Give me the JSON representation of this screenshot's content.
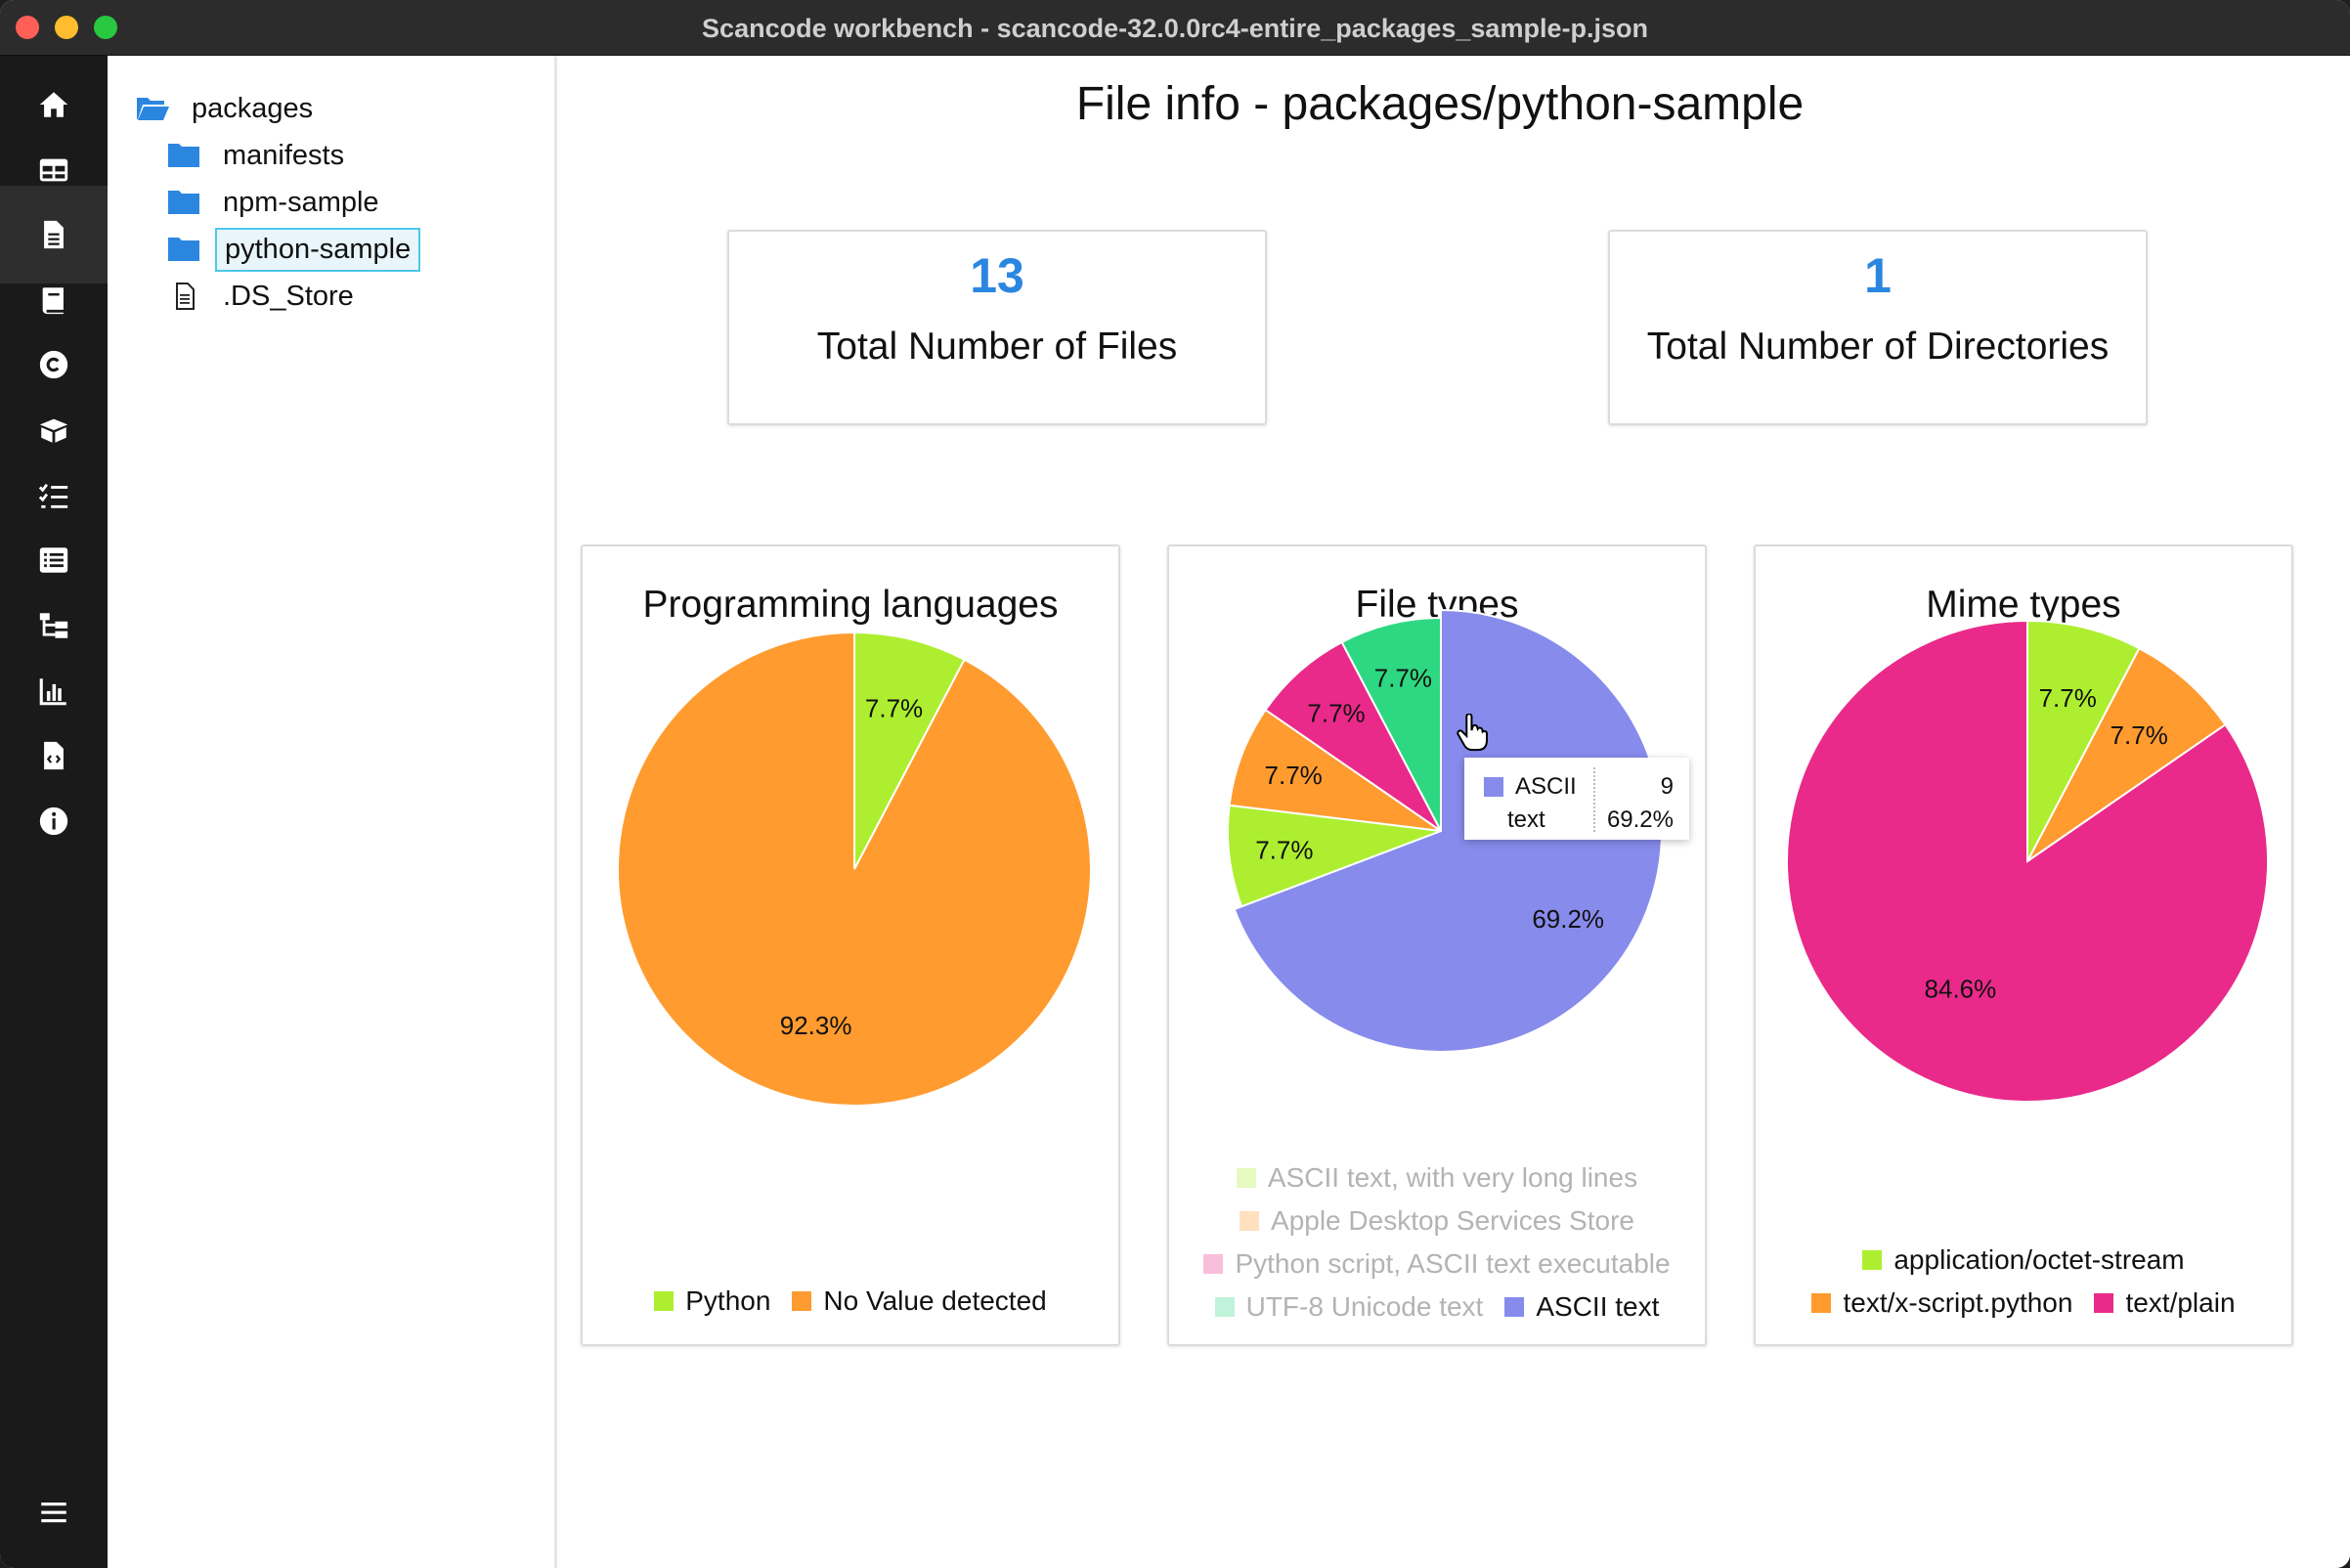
{
  "window": {
    "title": "Scancode workbench - scancode-32.0.0rc4-entire_packages_sample-p.json"
  },
  "nav": {
    "icons": [
      "home-icon",
      "table-icon",
      "file-icon",
      "book-icon",
      "copyright-icon",
      "package-icon",
      "checklist-icon",
      "list-icon",
      "tree-icon",
      "bar-chart-icon",
      "file-code-icon",
      "info-icon",
      "menu-icon"
    ],
    "active": "file-icon"
  },
  "tree": {
    "root": "packages",
    "items": [
      {
        "label": "manifests",
        "type": "folder"
      },
      {
        "label": "npm-sample",
        "type": "folder"
      },
      {
        "label": "python-sample",
        "type": "folder",
        "selected": true
      },
      {
        "label": ".DS_Store",
        "type": "file"
      }
    ]
  },
  "main": {
    "title": "File info - packages/python-sample",
    "stats": [
      {
        "value": "13",
        "label": "Total Number of Files"
      },
      {
        "value": "1",
        "label": "Total Number of Directories"
      }
    ]
  },
  "colors": {
    "accent": "#2b86e0",
    "orange": "#ff9b2f",
    "lime": "#adef30",
    "magenta": "#e92a8a",
    "green": "#2ed882",
    "periwinkle": "#878beb"
  },
  "chart_data": [
    {
      "type": "pie",
      "title": "Programming languages",
      "slices": [
        {
          "label": "Python",
          "value": 1,
          "percent_label": "7.7%",
          "color": "#adef30"
        },
        {
          "label": "No Value detected",
          "value": 12,
          "percent_label": "92.3%",
          "color": "#ff9b2f"
        }
      ],
      "legend": [
        [
          "Python",
          "No Value detected"
        ]
      ]
    },
    {
      "type": "pie",
      "title": "File types",
      "slices": [
        {
          "label": "ASCII text",
          "value": 9,
          "percent_label": "69.2%",
          "color": "#878beb",
          "highlighted": true
        },
        {
          "label": "ASCII text, with very long lines",
          "value": 1,
          "percent_label": "7.7%",
          "color": "#adef30"
        },
        {
          "label": "Apple Desktop Services Store",
          "value": 1,
          "percent_label": "7.7%",
          "color": "#ff9b2f"
        },
        {
          "label": "Python script, ASCII text executable",
          "value": 1,
          "percent_label": "7.7%",
          "color": "#e92a8a"
        },
        {
          "label": "UTF-8 Unicode text",
          "value": 1,
          "percent_label": "7.7%",
          "color": "#2ed882"
        }
      ],
      "legend": [
        [
          "ASCII text, with very long lines"
        ],
        [
          "Apple Desktop Services Store"
        ],
        [
          "Python script, ASCII text executable"
        ],
        [
          "UTF-8 Unicode text",
          "ASCII text"
        ]
      ],
      "tooltip": {
        "name_line1": "ASCII",
        "name_line2": "text",
        "value": "9",
        "percent": "69.2%"
      }
    },
    {
      "type": "pie",
      "title": "Mime types",
      "slices": [
        {
          "label": "application/octet-stream",
          "value": 1,
          "percent_label": "7.7%",
          "color": "#adef30"
        },
        {
          "label": "text/x-script.python",
          "value": 1,
          "percent_label": "7.7%",
          "color": "#ff9b2f"
        },
        {
          "label": "text/plain",
          "value": 11,
          "percent_label": "84.6%",
          "color": "#e92a8a"
        }
      ],
      "legend": [
        [
          "application/octet-stream"
        ],
        [
          "text/x-script.python",
          "text/plain"
        ]
      ]
    }
  ]
}
